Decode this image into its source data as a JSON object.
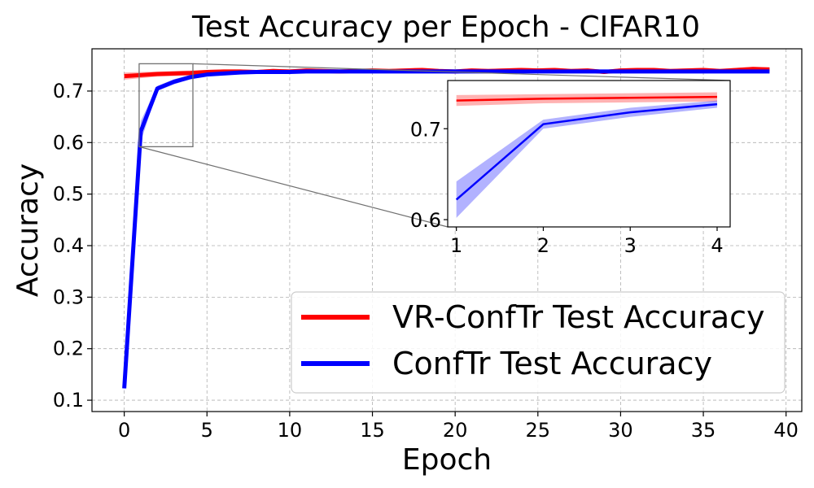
{
  "chart_data": {
    "type": "line",
    "title": "Test Accuracy per Epoch - CIFAR10",
    "xlabel": "Epoch",
    "ylabel": "Accuracy",
    "xlim": [
      -1.95,
      40.95
    ],
    "ylim": [
      0.078,
      0.782
    ],
    "xticks": [
      0,
      5,
      10,
      15,
      20,
      25,
      30,
      35,
      40
    ],
    "yticks": [
      0.1,
      0.2,
      0.3,
      0.4,
      0.5,
      0.6,
      0.7
    ],
    "grid": true,
    "legend_position": "lower-right",
    "x": [
      0,
      1,
      2,
      3,
      4,
      5,
      6,
      7,
      8,
      9,
      10,
      11,
      12,
      13,
      14,
      15,
      16,
      17,
      18,
      19,
      20,
      21,
      22,
      23,
      24,
      25,
      26,
      27,
      28,
      29,
      30,
      31,
      32,
      33,
      34,
      35,
      36,
      37,
      38,
      39
    ],
    "series": [
      {
        "name": "VR-ConfTr Test Accuracy",
        "color": "#ff0000",
        "values": [
          0.729,
          0.731,
          0.733,
          0.734,
          0.735,
          0.737,
          0.738,
          0.738,
          0.737,
          0.739,
          0.738,
          0.74,
          0.739,
          0.738,
          0.739,
          0.74,
          0.739,
          0.74,
          0.741,
          0.739,
          0.738,
          0.74,
          0.739,
          0.74,
          0.741,
          0.74,
          0.741,
          0.739,
          0.74,
          0.737,
          0.74,
          0.741,
          0.741,
          0.739,
          0.74,
          0.741,
          0.739,
          0.741,
          0.743,
          0.742
        ],
        "band": [
          0.007,
          0.006,
          0.005,
          0.005,
          0.005,
          0.004,
          0.004,
          0.004,
          0.004,
          0.004,
          0.004,
          0.004,
          0.004,
          0.004,
          0.004,
          0.004,
          0.004,
          0.004,
          0.004,
          0.004,
          0.004,
          0.004,
          0.004,
          0.004,
          0.004,
          0.004,
          0.004,
          0.004,
          0.004,
          0.004,
          0.004,
          0.004,
          0.004,
          0.004,
          0.004,
          0.004,
          0.004,
          0.004,
          0.004,
          0.004
        ]
      },
      {
        "name": "ConfTr Test Accuracy",
        "color": "#0000ff",
        "values": [
          0.123,
          0.622,
          0.705,
          0.718,
          0.727,
          0.732,
          0.734,
          0.736,
          0.737,
          0.737,
          0.737,
          0.738,
          0.738,
          0.738,
          0.738,
          0.738,
          0.738,
          0.738,
          0.738,
          0.738,
          0.738,
          0.738,
          0.738,
          0.738,
          0.738,
          0.738,
          0.738,
          0.738,
          0.738,
          0.738,
          0.738,
          0.738,
          0.738,
          0.738,
          0.738,
          0.738,
          0.738,
          0.738,
          0.738,
          0.738
        ],
        "band": [
          0.008,
          0.02,
          0.005,
          0.005,
          0.004,
          0.003,
          0.003,
          0.003,
          0.003,
          0.003,
          0.003,
          0.003,
          0.003,
          0.003,
          0.003,
          0.003,
          0.003,
          0.003,
          0.003,
          0.003,
          0.003,
          0.003,
          0.003,
          0.003,
          0.003,
          0.003,
          0.003,
          0.003,
          0.003,
          0.003,
          0.003,
          0.003,
          0.003,
          0.003,
          0.003,
          0.003,
          0.003,
          0.003,
          0.003,
          0.003
        ]
      }
    ],
    "inset": {
      "xlim": [
        0.9,
        4.15
      ],
      "ylim": [
        0.592,
        0.753
      ],
      "xticks": [
        1,
        2,
        3,
        4
      ],
      "yticks": [
        0.6,
        0.7
      ]
    }
  }
}
